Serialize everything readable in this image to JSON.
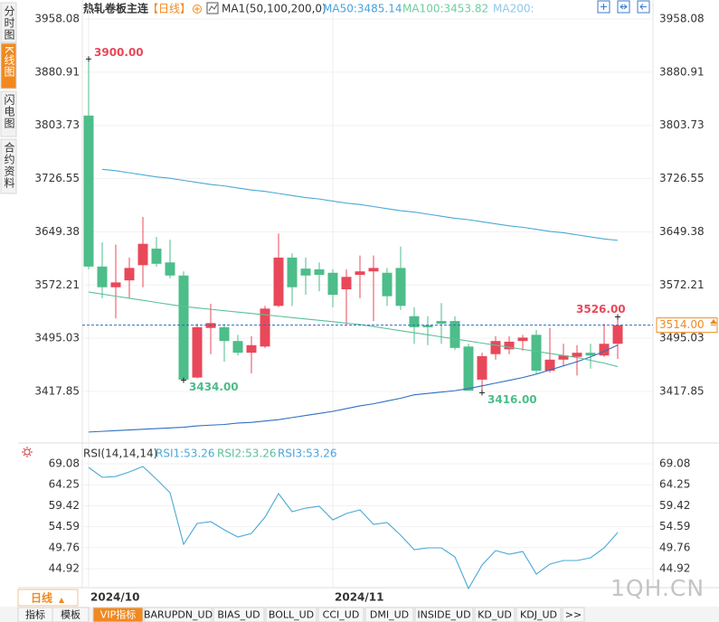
{
  "sidebar_tabs": [
    "分时图",
    "K线图",
    "闪电图",
    "合约资料"
  ],
  "active_tab": 1,
  "header": {
    "symbol": "热轧卷板主连",
    "period": "【日线】",
    "indicator": "MA1(50,100,200,0)"
  },
  "chart_data": [
    {
      "type": "candlestick",
      "categories": [
        "2024/10",
        null,
        null,
        null,
        null,
        null,
        null,
        null,
        null,
        null,
        null,
        null,
        null,
        null,
        null,
        null,
        null,
        null,
        "2024/11",
        null,
        null,
        null,
        null,
        null,
        null,
        null,
        null,
        null,
        null,
        null,
        null,
        null,
        null,
        null,
        null,
        null,
        null,
        null,
        null,
        null
      ],
      "open": [
        3818,
        3599,
        3569,
        3579,
        3601,
        3625,
        3605,
        3586,
        3438,
        3510,
        3511,
        3491,
        3474,
        3483,
        3542,
        3612,
        3596,
        3595,
        3590,
        3566,
        3587,
        3592,
        3590,
        3597,
        3527,
        3514,
        3520,
        3520,
        3483,
        3435,
        3472,
        3479,
        3491,
        3500,
        3448,
        3464,
        3468,
        3474,
        3470,
        3487
      ],
      "high": [
        3900,
        3634,
        3631,
        3612,
        3671,
        3642,
        3638,
        3592,
        3516,
        3545,
        3516,
        3500,
        3498,
        3542,
        3647,
        3618,
        3612,
        3605,
        3595,
        3595,
        3615,
        3615,
        3597,
        3628,
        3540,
        3527,
        3546,
        3527,
        3487,
        3474,
        3498,
        3498,
        3500,
        3507,
        3510,
        3487,
        3485,
        3487,
        3516,
        3526
      ],
      "low": [
        3595,
        3553,
        3524,
        3553,
        3569,
        3599,
        3582,
        3434,
        3437,
        3472,
        3461,
        3470,
        3444,
        3481,
        3540,
        3542,
        3558,
        3563,
        3540,
        3514,
        3553,
        3520,
        3542,
        3536,
        3487,
        3485,
        3487,
        3478,
        3419,
        3416,
        3464,
        3472,
        3477,
        3444,
        3445,
        3455,
        3441,
        3451,
        3468,
        3465
      ],
      "close": [
        3599,
        3569,
        3576,
        3597,
        3632,
        3603,
        3586,
        3435,
        3511,
        3517,
        3491,
        3474,
        3485,
        3538,
        3612,
        3569,
        3586,
        3587,
        3558,
        3584,
        3592,
        3597,
        3556,
        3542,
        3511,
        3511,
        3516,
        3481,
        3419,
        3469,
        3491,
        3490,
        3496,
        3448,
        3464,
        3470,
        3474,
        3470,
        3487,
        3514
      ],
      "up_color": "#e8485a",
      "down_color": "#4dbd8a",
      "series": [
        {
          "name": "MA50",
          "legend_label": "MA50:3485.14",
          "color": "#2f6fc0",
          "text_color": "#4aa3df",
          "values": [
            3359,
            3360,
            3361,
            3362,
            3363,
            3364,
            3365,
            3366,
            3368,
            3369,
            3370,
            3372,
            3373,
            3375,
            3377,
            3380,
            3383,
            3386,
            3389,
            3393,
            3397,
            3400,
            3404,
            3408,
            3413,
            3415,
            3417,
            3419,
            3422,
            3426,
            3430,
            3434,
            3438,
            3443,
            3449,
            3455,
            3461,
            3468,
            3476,
            3485.14
          ]
        },
        {
          "name": "MA100",
          "legend_label": "MA100:3453.82",
          "color": "#5cc09a",
          "text_color": "#6ccfa0",
          "values": [
            3562,
            3559,
            3556,
            3553,
            3550,
            3547,
            3544,
            3541,
            3539,
            3537,
            3535,
            3533,
            3531,
            3529,
            3527,
            3525,
            3523,
            3521,
            3519,
            3517,
            3515,
            3512,
            3509,
            3506,
            3503,
            3500,
            3497,
            3494,
            3491,
            3488,
            3485,
            3482,
            3479,
            3476,
            3473,
            3470,
            3467,
            3463,
            3459,
            3453.82
          ]
        },
        {
          "name": "MA200",
          "legend_label": "MA200:",
          "color": "#4aa9d6",
          "text_color": "#8fc8ec",
          "values": [
            null,
            3740,
            3738,
            3735,
            3732,
            3729,
            3727,
            3724,
            3721,
            3718,
            3716,
            3713,
            3710,
            3708,
            3705,
            3702,
            3699,
            3697,
            3694,
            3691,
            3689,
            3686,
            3683,
            3680,
            3678,
            3675,
            3672,
            3669,
            3667,
            3664,
            3661,
            3658,
            3656,
            3653,
            3650,
            3648,
            3645,
            3642,
            3639,
            3637
          ]
        }
      ],
      "ylim": [
        3345.73,
        3967.26
      ],
      "yticks": [
        3958.08,
        3880.91,
        3803.73,
        3726.55,
        3649.38,
        3572.21,
        3495.03,
        3417.85
      ],
      "grid": true,
      "annotations": [
        {
          "label": "3900.00",
          "index": 0,
          "field": "high"
        },
        {
          "label": "3434.00",
          "index": 7,
          "field": "low"
        },
        {
          "label": "3416.00",
          "index": 29,
          "field": "low"
        },
        {
          "label": "3526.00",
          "index": 39,
          "field": "high"
        }
      ],
      "last_price": 3514,
      "last_price_label": "3514.00",
      "last_price_color": "#f0891f"
    },
    {
      "type": "line",
      "title": "RSI(14,14,14)",
      "series": [
        {
          "name": "RSI1",
          "legend_label": "RSI1:53.26",
          "color": "#4aa9d6",
          "values": [
            68.25,
            65.96,
            66.16,
            67.21,
            68.46,
            65.54,
            62.41,
            50.54,
            55.33,
            55.75,
            53.87,
            52.21,
            53.04,
            56.79,
            62.21,
            58.04,
            58.87,
            59.29,
            56.16,
            57.62,
            58.46,
            55.12,
            55.54,
            52.62,
            49.29,
            49.71,
            49.71,
            47.62,
            40.33,
            45.75,
            49.08,
            48.25,
            48.87,
            43.66,
            45.96,
            46.79,
            46.79,
            47.42,
            49.71,
            53.26
          ]
        },
        {
          "name": "RSI2",
          "legend_label": "RSI2:53.26",
          "color": "#5cc09a"
        },
        {
          "name": "RSI3",
          "legend_label": "RSI3:53.26",
          "color": "#4aa3df"
        }
      ],
      "ylim": [
        39.5,
        70.75
      ],
      "yticks": [
        69.08,
        64.25,
        59.42,
        54.59,
        49.76,
        44.92
      ],
      "grid": true
    }
  ],
  "period_button": "日线",
  "toolbar": [
    "指标",
    "模板",
    "VIP指标",
    "BARUPDN_UD",
    "BIAS_UD",
    "BOLL_UD",
    "CCI_UD",
    "DMI_UD",
    "INSIDE_UD",
    "KD_UD",
    "KDJ_UD",
    ">>"
  ],
  "toolbar_active": 2,
  "watermark": "1QH.CN"
}
